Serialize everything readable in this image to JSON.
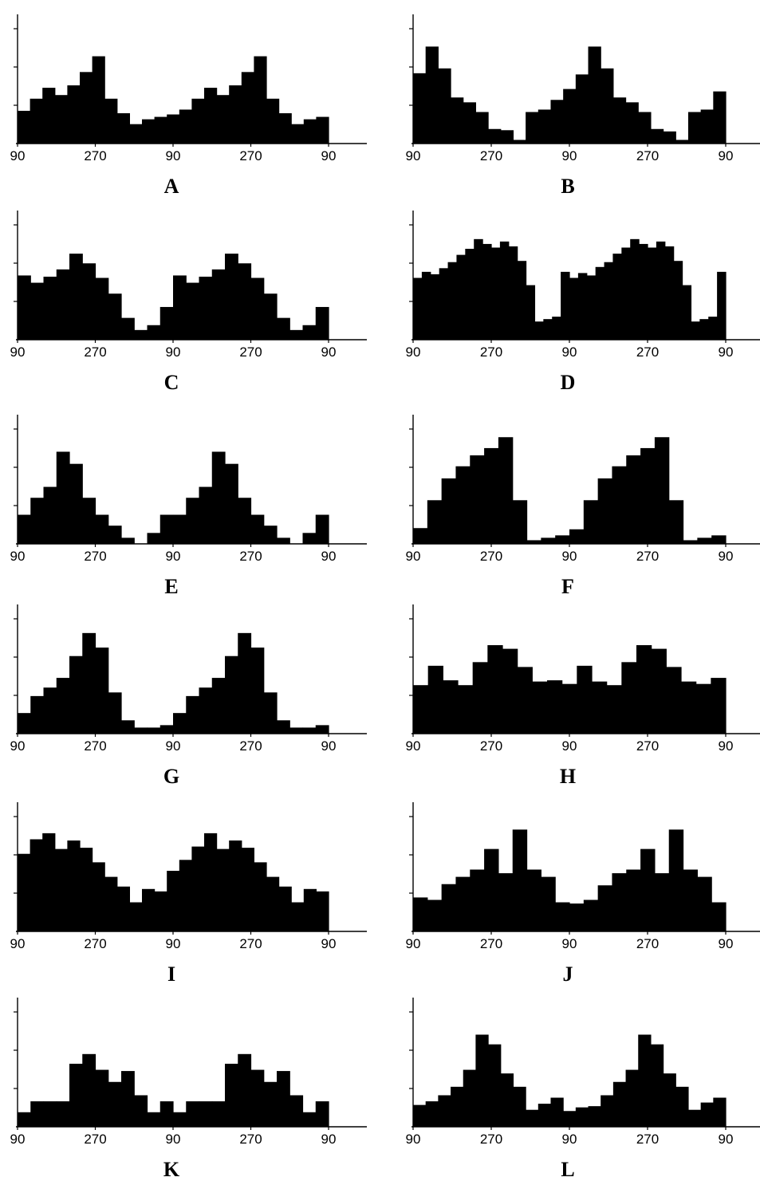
{
  "chart_data": [
    {
      "type": "bar",
      "label": "A",
      "x_tick_labels": [
        "90",
        "270",
        "90",
        "270",
        "90"
      ],
      "values": [
        2.7,
        3.7,
        4.6,
        4.0,
        4.8,
        5.9,
        7.2,
        3.7,
        2.5,
        1.6,
        2.0,
        2.2,
        2.4,
        2.8,
        3.7,
        4.6,
        4.0,
        4.8,
        5.9,
        7.2,
        3.7,
        2.5,
        1.6,
        2.0,
        2.2
      ]
    },
    {
      "type": "bar",
      "label": "B",
      "x_tick_labels": [
        "90",
        "270",
        "90",
        "270",
        "90"
      ],
      "values": [
        5.8,
        8.0,
        6.2,
        3.8,
        3.4,
        2.6,
        1.2,
        1.1,
        0.3,
        2.6,
        2.8,
        3.6,
        4.5,
        5.7,
        8.0,
        6.2,
        3.8,
        3.4,
        2.6,
        1.2,
        1.0,
        0.3,
        2.6,
        2.8,
        4.3
      ]
    },
    {
      "type": "bar",
      "label": "C",
      "x_tick_labels": [
        "90",
        "270",
        "90",
        "270",
        "90"
      ],
      "values": [
        5.3,
        4.7,
        5.2,
        5.8,
        7.1,
        6.3,
        5.1,
        3.8,
        1.8,
        0.8,
        1.2,
        2.7,
        5.3,
        4.7,
        5.2,
        5.8,
        7.1,
        6.3,
        5.1,
        3.8,
        1.8,
        0.8,
        1.2,
        2.7
      ]
    },
    {
      "type": "bar",
      "label": "D",
      "x_tick_labels": [
        "90",
        "270",
        "90",
        "270",
        "90"
      ],
      "values": [
        5.1,
        5.6,
        5.4,
        5.9,
        6.4,
        7.0,
        7.5,
        8.3,
        7.9,
        7.6,
        8.1,
        7.7,
        6.5,
        4.5,
        1.5,
        1.7,
        1.9,
        5.6,
        5.1,
        5.5,
        5.3,
        6.0,
        6.4,
        7.1,
        7.6,
        8.3,
        7.9,
        7.6,
        8.1,
        7.7,
        6.5,
        4.5,
        1.5,
        1.7,
        1.9,
        5.6
      ]
    },
    {
      "type": "bar",
      "label": "E",
      "x_tick_labels": [
        "90",
        "270",
        "90",
        "270",
        "90"
      ],
      "values": [
        2.4,
        3.8,
        4.7,
        7.6,
        6.6,
        3.8,
        2.4,
        1.5,
        0.5,
        0,
        0.9,
        2.4,
        2.4,
        3.8,
        4.7,
        7.6,
        6.6,
        3.8,
        2.4,
        1.5,
        0.5,
        0,
        0.9,
        2.4
      ]
    },
    {
      "type": "bar",
      "label": "F",
      "x_tick_labels": [
        "90",
        "270",
        "90",
        "270",
        "90"
      ],
      "values": [
        1.3,
        3.6,
        5.4,
        6.4,
        7.3,
        7.9,
        8.8,
        3.6,
        0.3,
        0.5,
        0.7,
        1.2,
        3.6,
        5.4,
        6.4,
        7.3,
        7.9,
        8.8,
        3.6,
        0.3,
        0.5,
        0.7
      ]
    },
    {
      "type": "bar",
      "label": "G",
      "x_tick_labels": [
        "90",
        "270",
        "90",
        "270",
        "90"
      ],
      "values": [
        1.7,
        3.1,
        3.8,
        4.6,
        6.4,
        8.3,
        7.1,
        3.4,
        1.1,
        0.5,
        0.5,
        0.7,
        1.7,
        3.1,
        3.8,
        4.6,
        6.4,
        8.3,
        7.1,
        3.4,
        1.1,
        0.5,
        0.5,
        0.7
      ]
    },
    {
      "type": "bar",
      "label": "H",
      "x_tick_labels": [
        "90",
        "270",
        "90",
        "270",
        "90"
      ],
      "values": [
        4.0,
        5.6,
        4.4,
        4.0,
        5.9,
        7.3,
        7.0,
        5.5,
        4.3,
        4.4,
        4.1,
        5.6,
        4.3,
        4.0,
        5.9,
        7.3,
        7.0,
        5.5,
        4.3,
        4.1,
        4.6
      ]
    },
    {
      "type": "bar",
      "label": "I",
      "x_tick_labels": [
        "90",
        "270",
        "90",
        "270",
        "90"
      ],
      "values": [
        6.4,
        7.6,
        8.1,
        6.8,
        7.5,
        6.9,
        5.7,
        4.5,
        3.7,
        2.4,
        3.5,
        3.3,
        5.0,
        5.9,
        7.0,
        8.1,
        6.8,
        7.5,
        6.9,
        5.7,
        4.5,
        3.7,
        2.4,
        3.5,
        3.3
      ]
    },
    {
      "type": "bar",
      "label": "J",
      "x_tick_labels": [
        "90",
        "270",
        "90",
        "270",
        "90"
      ],
      "values": [
        2.8,
        2.6,
        3.9,
        4.5,
        5.1,
        6.8,
        4.8,
        8.4,
        5.1,
        4.5,
        2.4,
        2.3,
        2.6,
        3.8,
        4.8,
        5.1,
        6.8,
        4.8,
        8.4,
        5.1,
        4.5,
        2.4
      ]
    },
    {
      "type": "bar",
      "label": "K",
      "x_tick_labels": [
        "90",
        "270",
        "90",
        "270",
        "90"
      ],
      "values": [
        1.2,
        2.1,
        2.1,
        2.1,
        5.2,
        6.0,
        4.7,
        3.7,
        4.6,
        2.6,
        1.2,
        2.1,
        1.2,
        2.1,
        2.1,
        2.1,
        5.2,
        6.0,
        4.7,
        3.7,
        4.6,
        2.6,
        1.2,
        2.1
      ]
    },
    {
      "type": "bar",
      "label": "L",
      "x_tick_labels": [
        "90",
        "270",
        "90",
        "270",
        "90"
      ],
      "values": [
        1.8,
        2.1,
        2.6,
        3.3,
        4.7,
        7.6,
        6.8,
        4.4,
        3.3,
        1.4,
        1.9,
        2.4,
        1.3,
        1.6,
        1.7,
        2.6,
        3.7,
        4.7,
        7.6,
        6.8,
        4.4,
        3.3,
        1.4,
        2.0,
        2.4
      ]
    }
  ]
}
